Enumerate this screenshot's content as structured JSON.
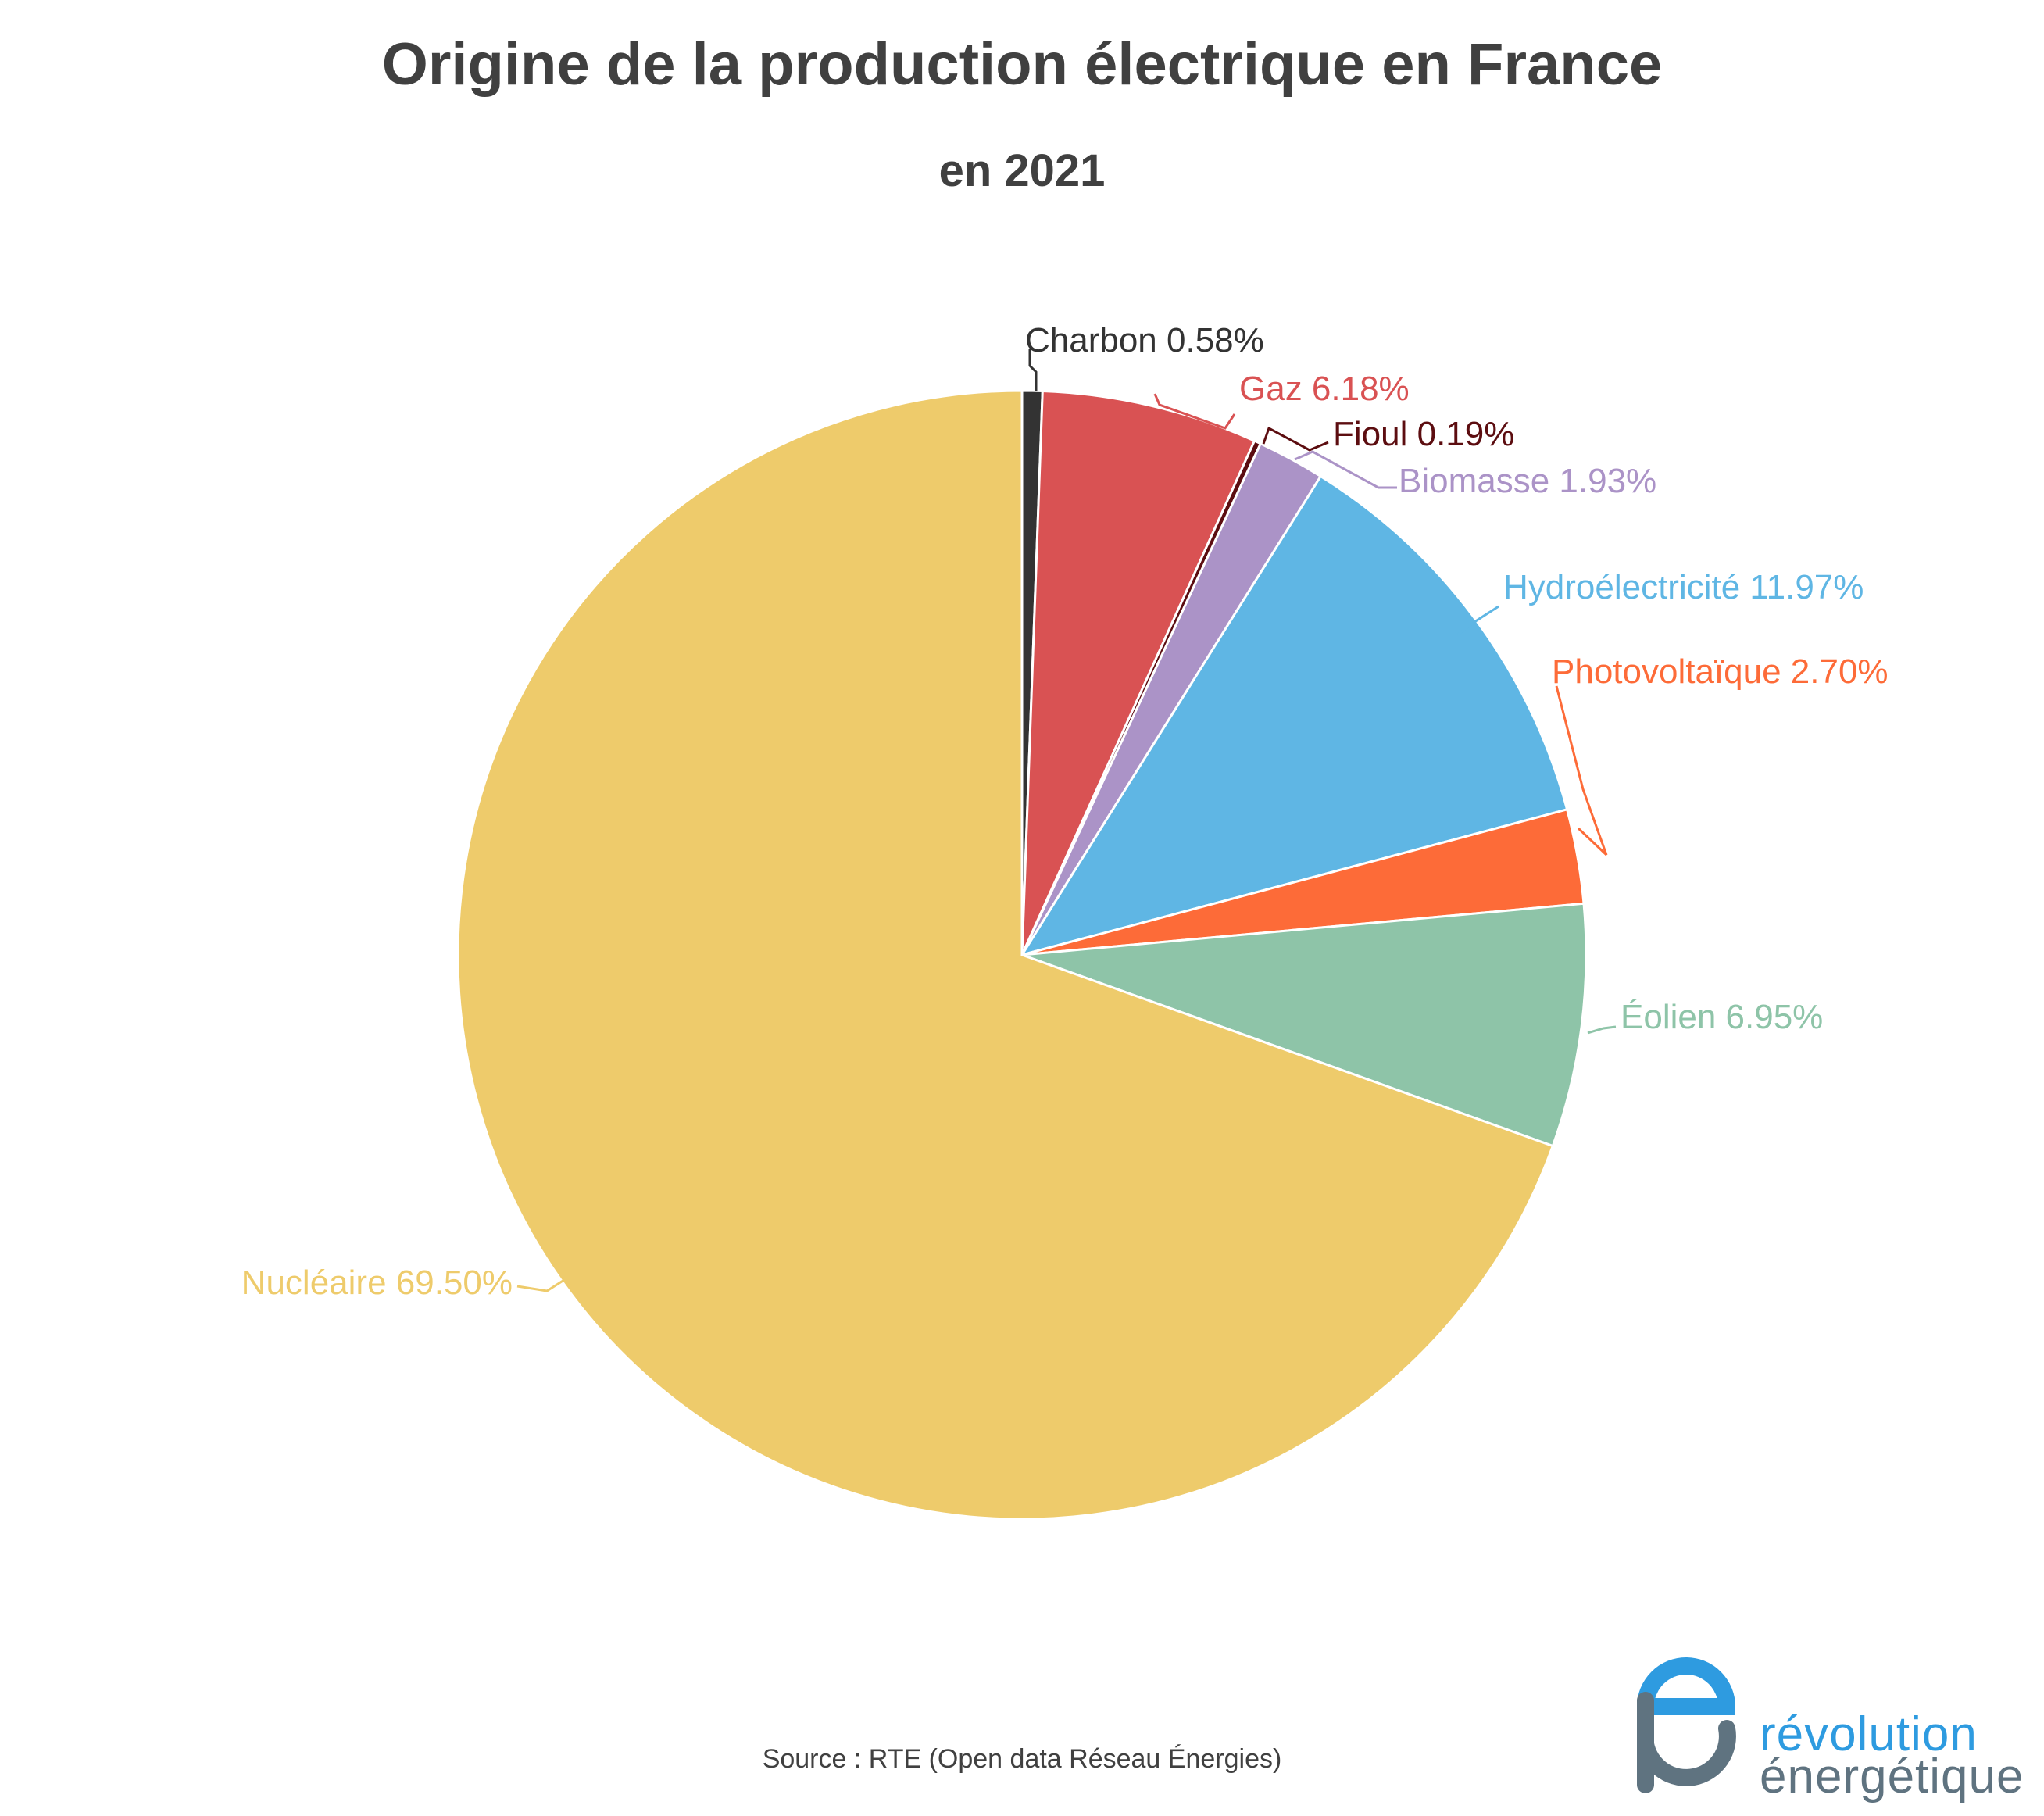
{
  "chart_data": {
    "type": "pie",
    "title": "Origine de la production électrique en France",
    "subtitle": "en 2021",
    "source": "Source : RTE (Open data Réseau Énergies)",
    "start": "12 o'clock",
    "direction": "clockwise",
    "slices": [
      {
        "name": "Charbon",
        "value": 0.58,
        "label": "Charbon 0.58%",
        "color": "#333333"
      },
      {
        "name": "Gaz",
        "value": 6.18,
        "label": "Gaz 6.18%",
        "color": "#d95253"
      },
      {
        "name": "Fioul",
        "value": 0.19,
        "label": "Fioul 0.19%",
        "color": "#5c0d10"
      },
      {
        "name": "Biomasse",
        "value": 1.93,
        "label": "Biomasse 1.93%",
        "color": "#ab93c7"
      },
      {
        "name": "Hydroélectricité",
        "value": 11.97,
        "label": "Hydroélectricité 11.97%",
        "color": "#5fb6e4"
      },
      {
        "name": "Photovoltaïque",
        "value": 2.7,
        "label": "Photovoltaïque 2.70%",
        "color": "#fd6b38"
      },
      {
        "name": "Éolien",
        "value": 6.95,
        "label": "Éolien 6.95%",
        "color": "#8ec4a8"
      },
      {
        "name": "Nucléaire",
        "value": 69.5,
        "label": "Nucléaire 69.50%",
        "color": "#eecb6b"
      }
    ]
  },
  "logo": {
    "line1": "révolution",
    "line2": "énergétique",
    "color_blue": "#2e9be0",
    "color_gray": "#5f7380"
  }
}
